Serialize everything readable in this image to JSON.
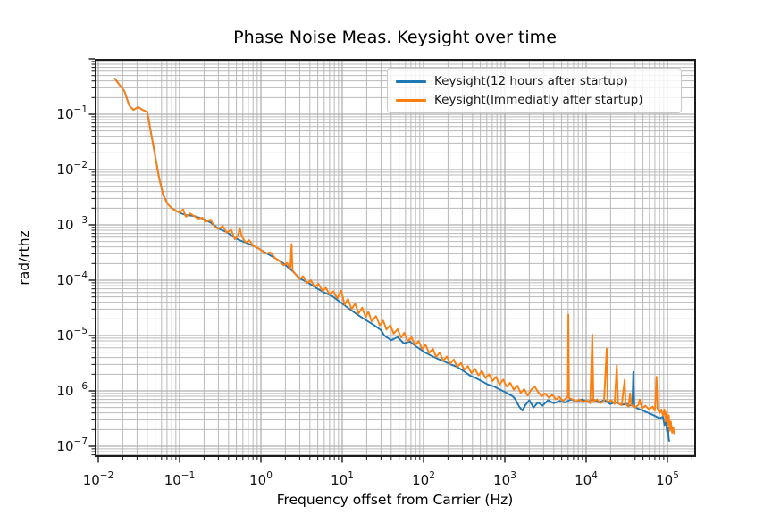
{
  "chart_data": {
    "type": "line",
    "title": "Phase Noise Meas. Keysight over time",
    "xlabel": "Frequency offset from Carrier (Hz)",
    "ylabel": "rad/rthz",
    "x_scale": "log",
    "y_scale": "log",
    "xlim": [
      0.0093,
      220000
    ],
    "ylim": [
      6.6e-08,
      0.96
    ],
    "x_tick_exponents": [
      -2,
      -1,
      0,
      1,
      2,
      3,
      4,
      5
    ],
    "y_tick_exponents": [
      -1,
      -2,
      -3,
      -4,
      -5,
      -6,
      -7
    ],
    "grid": "both major and minor, on",
    "legend_position": "upper right",
    "colors": {
      "grid_major": "#b0b0b0",
      "grid_minor": "#b9b9b9",
      "spine": "#1c1c1c",
      "tick": "#262626",
      "tick_label": "#111111",
      "background": "#ffffff"
    },
    "series": [
      {
        "name": "Keysight(12 hours after startup)",
        "color": "#1f77b4",
        "points": [
          [
            0.016,
            0.44
          ],
          [
            0.018,
            0.35
          ],
          [
            0.021,
            0.26
          ],
          [
            0.024,
            0.145
          ],
          [
            0.027,
            0.12
          ],
          [
            0.031,
            0.135
          ],
          [
            0.035,
            0.12
          ],
          [
            0.04,
            0.11
          ],
          [
            0.044,
            0.05
          ],
          [
            0.05,
            0.018
          ],
          [
            0.056,
            0.007
          ],
          [
            0.063,
            0.0035
          ],
          [
            0.071,
            0.0024
          ],
          [
            0.08,
            0.002
          ],
          [
            0.09,
            0.0018
          ],
          [
            0.1,
            0.00165
          ],
          [
            0.12,
            0.0015
          ],
          [
            0.15,
            0.00145
          ],
          [
            0.19,
            0.0013
          ],
          [
            0.24,
            0.0011
          ],
          [
            0.3,
            0.00086
          ],
          [
            0.38,
            0.00074
          ],
          [
            0.48,
            0.00058
          ],
          [
            0.6,
            0.0005
          ],
          [
            0.75,
            0.00044
          ],
          [
            0.95,
            0.00037
          ],
          [
            1.2,
            0.0003
          ],
          [
            1.5,
            0.00025
          ],
          [
            1.9,
            0.0002
          ],
          [
            2.4,
            0.00015
          ],
          [
            3.0,
            0.000108
          ],
          [
            3.8,
            9e-05
          ],
          [
            4.8,
            7.2e-05
          ],
          [
            6.0,
            6e-05
          ],
          [
            7.6,
            5.1e-05
          ],
          [
            9.5,
            4e-05
          ],
          [
            12,
            3.1e-05
          ],
          [
            15,
            2.45e-05
          ],
          [
            19,
            1.95e-05
          ],
          [
            24,
            1.58e-05
          ],
          [
            30,
            1.25e-05
          ],
          [
            33,
            1e-05
          ],
          [
            40,
            8.2e-06
          ],
          [
            48,
            9.4e-06
          ],
          [
            57,
            7.2e-06
          ],
          [
            68,
            7.8e-06
          ],
          [
            80,
            6.4e-06
          ],
          [
            92,
            5.6e-06
          ],
          [
            105,
            4.9e-06
          ],
          [
            125,
            4.3e-06
          ],
          [
            150,
            3.8e-06
          ],
          [
            180,
            3.4e-06
          ],
          [
            215,
            3e-06
          ],
          [
            260,
            2.7e-06
          ],
          [
            310,
            2.3e-06
          ],
          [
            370,
            1.9e-06
          ],
          [
            440,
            1.7e-06
          ],
          [
            520,
            1.5e-06
          ],
          [
            620,
            1.3e-06
          ],
          [
            740,
            1.2e-06
          ],
          [
            880,
            1.05e-06
          ],
          [
            1050,
            9.2e-07
          ],
          [
            1250,
            8e-07
          ],
          [
            1350,
            7e-07
          ],
          [
            1500,
            5.2e-07
          ],
          [
            1650,
            4.4e-07
          ],
          [
            1800,
            5.6e-07
          ],
          [
            2000,
            6.8e-07
          ],
          [
            2250,
            5e-07
          ],
          [
            2550,
            6.2e-07
          ],
          [
            2900,
            5.4e-07
          ],
          [
            3400,
            6.8e-07
          ],
          [
            4000,
            6e-07
          ],
          [
            4700,
            6.6e-07
          ],
          [
            5500,
            6.2e-07
          ],
          [
            6500,
            7e-07
          ],
          [
            7600,
            6.4e-07
          ],
          [
            8900,
            7e-07
          ],
          [
            10400,
            6.4e-07
          ],
          [
            12200,
            7e-07
          ],
          [
            14300,
            6.2e-07
          ],
          [
            16800,
            6.8e-07
          ],
          [
            19700,
            5.8e-07
          ],
          [
            23000,
            6.2e-07
          ],
          [
            27000,
            5.6e-07
          ],
          [
            31600,
            5.8e-07
          ],
          [
            34000,
            5.4e-07
          ],
          [
            37000,
            5.6e-07
          ],
          [
            38000,
            2.2e-06
          ],
          [
            39000,
            5.2e-07
          ],
          [
            43000,
            4.8e-07
          ],
          [
            50000,
            4.4e-07
          ],
          [
            58000,
            4e-07
          ],
          [
            68000,
            3.6e-07
          ],
          [
            80000,
            3.2e-07
          ],
          [
            88000,
            3.4e-07
          ],
          [
            92000,
            2.4e-07
          ],
          [
            96000,
            2.8e-07
          ],
          [
            99000,
            1.8e-07
          ],
          [
            101500,
            2.2e-07
          ],
          [
            103500,
            1.4e-07
          ],
          [
            105000,
            1.25e-07
          ]
        ]
      },
      {
        "name": "Keysight(Immediatly after startup)",
        "color": "#ff7f0e",
        "points": [
          [
            0.016,
            0.44
          ],
          [
            0.018,
            0.35
          ],
          [
            0.021,
            0.26
          ],
          [
            0.024,
            0.145
          ],
          [
            0.027,
            0.12
          ],
          [
            0.031,
            0.135
          ],
          [
            0.035,
            0.12
          ],
          [
            0.04,
            0.11
          ],
          [
            0.044,
            0.05
          ],
          [
            0.05,
            0.018
          ],
          [
            0.056,
            0.007
          ],
          [
            0.063,
            0.0035
          ],
          [
            0.071,
            0.0024
          ],
          [
            0.08,
            0.002
          ],
          [
            0.09,
            0.0018
          ],
          [
            0.1,
            0.00165
          ],
          [
            0.11,
            0.0019
          ],
          [
            0.12,
            0.0014
          ],
          [
            0.135,
            0.0016
          ],
          [
            0.15,
            0.00145
          ],
          [
            0.17,
            0.0013
          ],
          [
            0.19,
            0.00135
          ],
          [
            0.21,
            0.00112
          ],
          [
            0.24,
            0.00125
          ],
          [
            0.27,
            0.00092
          ],
          [
            0.3,
            0.00085
          ],
          [
            0.34,
            0.00095
          ],
          [
            0.38,
            0.00072
          ],
          [
            0.43,
            0.00082
          ],
          [
            0.48,
            0.00055
          ],
          [
            0.52,
            0.00063
          ],
          [
            0.55,
            0.00088
          ],
          [
            0.58,
            0.00062
          ],
          [
            0.65,
            0.00048
          ],
          [
            0.72,
            0.00053
          ],
          [
            0.8,
            0.00042
          ],
          [
            0.9,
            0.00039
          ],
          [
            1.0,
            0.00035
          ],
          [
            1.15,
            0.0003
          ],
          [
            1.3,
            0.00032
          ],
          [
            1.5,
            0.00025
          ],
          [
            1.7,
            0.00022
          ],
          [
            1.9,
            0.000185
          ],
          [
            2.1,
            0.000205
          ],
          [
            2.3,
            0.00016
          ],
          [
            2.38,
            0.00045
          ],
          [
            2.45,
            0.00015
          ],
          [
            2.7,
            0.000125
          ],
          [
            3.0,
            0.000105
          ],
          [
            3.3,
            0.000118
          ],
          [
            3.7,
            8.8e-05
          ],
          [
            4.1,
            0.0001
          ],
          [
            4.6,
            7.5e-05
          ],
          [
            5.1,
            8.6e-05
          ],
          [
            5.7,
            6.4e-05
          ],
          [
            6.3,
            7.3e-05
          ],
          [
            7.0,
            5.5e-05
          ],
          [
            7.8,
            6.3e-05
          ],
          [
            8.7,
            4.7e-05
          ],
          [
            9.7,
            6.5e-05
          ],
          [
            10.7,
            3.6e-05
          ],
          [
            11.8,
            4.6e-05
          ],
          [
            13,
            3e-05
          ],
          [
            14.4,
            3.8e-05
          ],
          [
            15.9,
            2.5e-05
          ],
          [
            17.6,
            3.2e-05
          ],
          [
            19.4,
            2.15e-05
          ],
          [
            21,
            2.7e-05
          ],
          [
            23,
            1.8e-05
          ],
          [
            26,
            2.25e-05
          ],
          [
            29,
            1.52e-05
          ],
          [
            32,
            1.85e-05
          ],
          [
            35,
            1.28e-05
          ],
          [
            39,
            1.55e-05
          ],
          [
            43,
            1.08e-05
          ],
          [
            48,
            1.3e-05
          ],
          [
            53,
            9.2e-06
          ],
          [
            58,
            1.12e-05
          ],
          [
            64,
            7.8e-06
          ],
          [
            71,
            9.4e-06
          ],
          [
            79,
            6.6e-06
          ],
          [
            87,
            8e-06
          ],
          [
            96,
            5.7e-06
          ],
          [
            106,
            6.8e-06
          ],
          [
            117,
            4.8e-06
          ],
          [
            130,
            5.8e-06
          ],
          [
            143,
            4.1e-06
          ],
          [
            158,
            4.9e-06
          ],
          [
            175,
            3.5e-06
          ],
          [
            193,
            4.2e-06
          ],
          [
            213,
            3.1e-06
          ],
          [
            236,
            3.7e-06
          ],
          [
            260,
            2.7e-06
          ],
          [
            288,
            3.2e-06
          ],
          [
            318,
            2.4e-06
          ],
          [
            351,
            2.8e-06
          ],
          [
            388,
            2.1e-06
          ],
          [
            429,
            2.5e-06
          ],
          [
            474,
            1.9e-06
          ],
          [
            523,
            2.3e-06
          ],
          [
            578,
            1.7e-06
          ],
          [
            639,
            2e-06
          ],
          [
            706,
            1.5e-06
          ],
          [
            780,
            1.8e-06
          ],
          [
            862,
            1.3e-06
          ],
          [
            952,
            1.6e-06
          ],
          [
            1052,
            1.2e-06
          ],
          [
            1163,
            1.4e-06
          ],
          [
            1285,
            1.05e-06
          ],
          [
            1420,
            1.25e-06
          ],
          [
            1570,
            9.2e-07
          ],
          [
            1730,
            1.08e-06
          ],
          [
            1910,
            8.2e-07
          ],
          [
            2110,
            1.05e-06
          ],
          [
            2330,
            1.2e-06
          ],
          [
            2570,
            9.5e-07
          ],
          [
            2840,
            8e-07
          ],
          [
            3140,
            9e-07
          ],
          [
            3470,
            7.5e-07
          ],
          [
            3840,
            8.5e-07
          ],
          [
            4240,
            7e-07
          ],
          [
            4680,
            7.8e-07
          ],
          [
            5170,
            6.6e-07
          ],
          [
            5700,
            7.4e-07
          ],
          [
            5950,
            8e-07
          ],
          [
            6050,
            2.4e-05
          ],
          [
            6150,
            7.5e-07
          ],
          [
            6800,
            7e-07
          ],
          [
            7500,
            6.4e-07
          ],
          [
            8300,
            7e-07
          ],
          [
            9200,
            6.2e-07
          ],
          [
            10100,
            6.8e-07
          ],
          [
            11200,
            6e-07
          ],
          [
            11900,
            1.05e-05
          ],
          [
            12300,
            6.4e-07
          ],
          [
            13600,
            7e-07
          ],
          [
            15000,
            6e-07
          ],
          [
            16600,
            6.6e-07
          ],
          [
            17900,
            5.8e-06
          ],
          [
            18400,
            6.2e-07
          ],
          [
            20300,
            6.8e-07
          ],
          [
            22400,
            5.8e-07
          ],
          [
            23800,
            2.9e-06
          ],
          [
            24700,
            6e-07
          ],
          [
            27300,
            5.5e-07
          ],
          [
            29800,
            1.6e-06
          ],
          [
            30500,
            5.8e-07
          ],
          [
            33000,
            5.2e-07
          ],
          [
            34800,
            9e-07
          ],
          [
            36000,
            5.5e-07
          ],
          [
            39800,
            5e-07
          ],
          [
            44000,
            5.6e-07
          ],
          [
            45500,
            7e-07
          ],
          [
            48600,
            4.8e-07
          ],
          [
            53700,
            5.4e-07
          ],
          [
            59300,
            4.6e-07
          ],
          [
            65600,
            5.2e-07
          ],
          [
            70000,
            4.4e-07
          ],
          [
            73500,
            1.8e-06
          ],
          [
            75500,
            4.8e-07
          ],
          [
            80000,
            4e-07
          ],
          [
            84000,
            4.6e-07
          ],
          [
            88000,
            3.6e-07
          ],
          [
            92000,
            4.6e-07
          ],
          [
            95000,
            2.8e-07
          ],
          [
            98000,
            4.2e-07
          ],
          [
            101000,
            2.4e-07
          ],
          [
            104000,
            3.6e-07
          ],
          [
            107000,
            1.9e-07
          ],
          [
            110000,
            2.8e-07
          ],
          [
            114000,
            1.75e-07
          ],
          [
            118000,
            2.2e-07
          ],
          [
            121000,
            1.7e-07
          ]
        ]
      }
    ]
  }
}
